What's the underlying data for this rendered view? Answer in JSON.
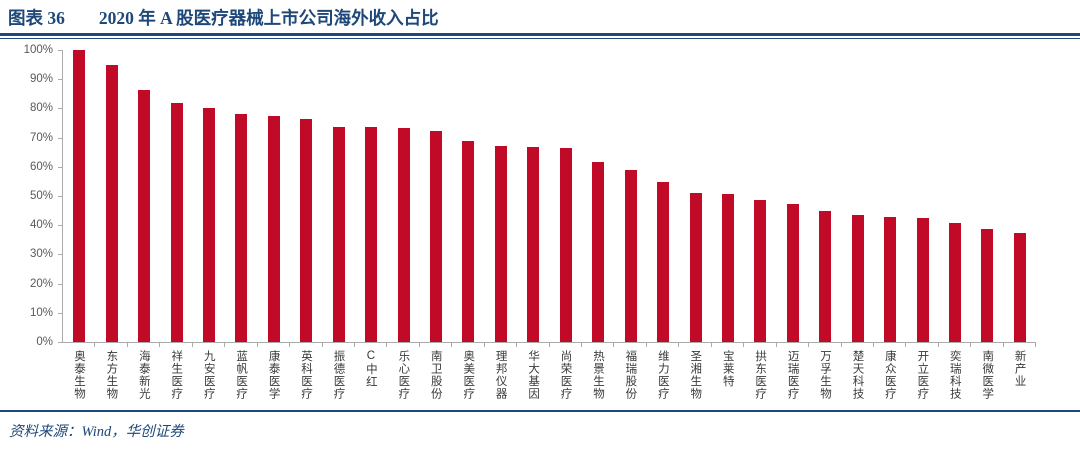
{
  "header": {
    "figure_label": "图表 36",
    "title": "2020 年 A 股医疗器械上市公司海外收入占比"
  },
  "source": {
    "text": "资料来源：Wind，华创证券"
  },
  "colors": {
    "bar": "#C00A28",
    "navy": "#1E4879",
    "axis": "#ABABAB",
    "y_tick_label": "#595959",
    "x_label": "#3a3a3a"
  },
  "chart_data": {
    "type": "bar",
    "title": "2020 年 A 股医疗器械上市公司海外收入占比",
    "categories": [
      "奥泰生物",
      "东方生物",
      "海泰新光",
      "祥生医疗",
      "九安医疗",
      "蓝帆医疗",
      "康泰医学",
      "英科医疗",
      "振德医疗",
      "C中红",
      "乐心医疗",
      "南卫股份",
      "奥美医疗",
      "理邦仪器",
      "华大基因",
      "尚荣医疗",
      "热景生物",
      "福瑞股份",
      "维力医疗",
      "圣湘生物",
      "宝莱特",
      "拱东医疗",
      "迈瑞医疗",
      "万孚生物",
      "楚天科技",
      "康众医疗",
      "开立医疗",
      "奕瑞科技",
      "南微医学",
      "新产业"
    ],
    "values": [
      100,
      94.7,
      86.3,
      82.0,
      80.2,
      78.2,
      77.4,
      76.4,
      73.8,
      73.6,
      73.3,
      72.1,
      68.9,
      67.1,
      66.8,
      66.3,
      61.6,
      58.9,
      54.7,
      51.2,
      50.7,
      48.6,
      47.3,
      45.0,
      43.6,
      42.9,
      42.6,
      40.7,
      38.7,
      37.4
    ],
    "xlabel": "",
    "ylabel": "",
    "ylim": [
      0,
      100
    ],
    "y_ticks": [
      "0%",
      "10%",
      "20%",
      "30%",
      "40%",
      "50%",
      "60%",
      "70%",
      "80%",
      "90%",
      "100%"
    ],
    "grid": false,
    "legend": false,
    "bar_color": "#C00A28"
  }
}
